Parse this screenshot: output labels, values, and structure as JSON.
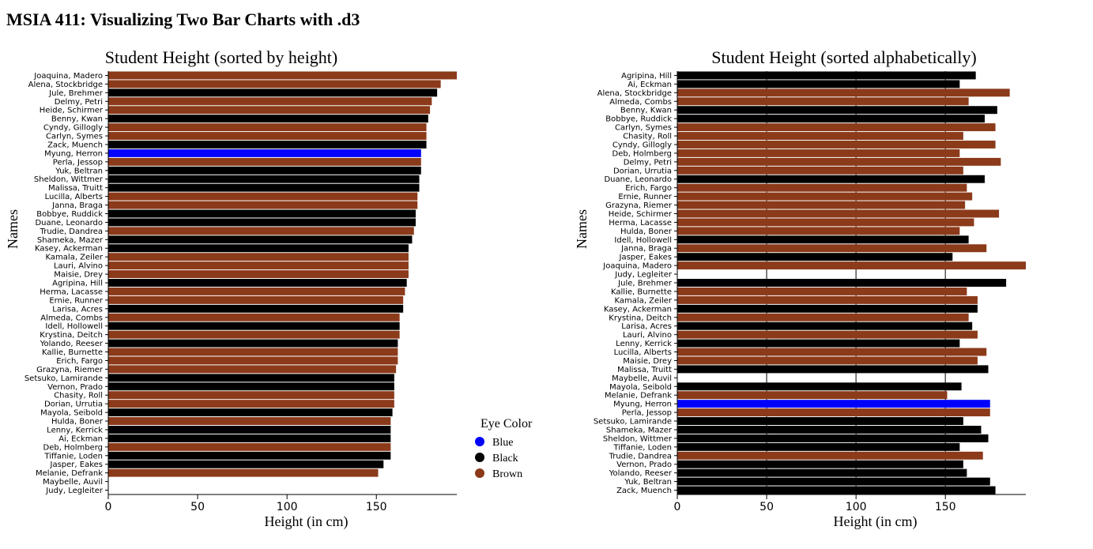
{
  "page": {
    "title": "MSIA 411: Visualizing Two Bar Charts with .d3"
  },
  "colors": {
    "Blue": "#0000ff",
    "Black": "#000000",
    "Brown": "#8b3a1a"
  },
  "legend": {
    "title": "Eye Color",
    "items": [
      {
        "label": "Blue",
        "color": "#0000ff"
      },
      {
        "label": "Black",
        "color": "#000000"
      },
      {
        "label": "Brown",
        "color": "#8b3a1a"
      }
    ]
  },
  "chart_data": [
    {
      "type": "bar",
      "orientation": "horizontal",
      "title": "Student Height (sorted by height)",
      "xlabel": "Height (in cm)",
      "ylabel": "Names",
      "xlim": [
        0,
        195
      ],
      "xticks": [
        0,
        50,
        100,
        150
      ],
      "grid": false,
      "bars": [
        {
          "name": "Joaquina, Madero",
          "value": 195,
          "eye": "Brown"
        },
        {
          "name": "Alena, Stockbridge",
          "value": 186,
          "eye": "Brown"
        },
        {
          "name": "Jule, Brehmer",
          "value": 184,
          "eye": "Black"
        },
        {
          "name": "Delmy, Petri",
          "value": 181,
          "eye": "Brown"
        },
        {
          "name": "Heide, Schirmer",
          "value": 180,
          "eye": "Brown"
        },
        {
          "name": "Benny, Kwan",
          "value": 179,
          "eye": "Black"
        },
        {
          "name": "Cyndy, Gillogly",
          "value": 178,
          "eye": "Brown"
        },
        {
          "name": "Carlyn, Symes",
          "value": 178,
          "eye": "Brown"
        },
        {
          "name": "Zack, Muench",
          "value": 178,
          "eye": "Black"
        },
        {
          "name": "Myung, Herron",
          "value": 175,
          "eye": "Blue"
        },
        {
          "name": "Perla, Jessop",
          "value": 175,
          "eye": "Brown"
        },
        {
          "name": "Yuk, Beltran",
          "value": 175,
          "eye": "Black"
        },
        {
          "name": "Sheldon, Wittmer",
          "value": 174,
          "eye": "Black"
        },
        {
          "name": "Malissa, Truitt",
          "value": 174,
          "eye": "Black"
        },
        {
          "name": "Lucilla, Alberts",
          "value": 173,
          "eye": "Brown"
        },
        {
          "name": "Janna, Braga",
          "value": 173,
          "eye": "Brown"
        },
        {
          "name": "Bobbye, Ruddick",
          "value": 172,
          "eye": "Black"
        },
        {
          "name": "Duane, Leonardo",
          "value": 172,
          "eye": "Black"
        },
        {
          "name": "Trudie, Dandrea",
          "value": 171,
          "eye": "Brown"
        },
        {
          "name": "Shameka, Mazer",
          "value": 170,
          "eye": "Black"
        },
        {
          "name": "Kasey, Ackerman",
          "value": 168,
          "eye": "Black"
        },
        {
          "name": "Kamala, Zeiler",
          "value": 168,
          "eye": "Brown"
        },
        {
          "name": "Lauri, Alvino",
          "value": 168,
          "eye": "Brown"
        },
        {
          "name": "Maisie, Drey",
          "value": 168,
          "eye": "Brown"
        },
        {
          "name": "Agripina, Hill",
          "value": 167,
          "eye": "Black"
        },
        {
          "name": "Herma, Lacasse",
          "value": 166,
          "eye": "Brown"
        },
        {
          "name": "Ernie, Runner",
          "value": 165,
          "eye": "Brown"
        },
        {
          "name": "Larisa, Acres",
          "value": 165,
          "eye": "Black"
        },
        {
          "name": "Almeda, Combs",
          "value": 163,
          "eye": "Brown"
        },
        {
          "name": "Idell, Hollowell",
          "value": 163,
          "eye": "Black"
        },
        {
          "name": "Krystina, Deitch",
          "value": 163,
          "eye": "Brown"
        },
        {
          "name": "Yolando, Reeser",
          "value": 162,
          "eye": "Black"
        },
        {
          "name": "Kallie, Burnette",
          "value": 162,
          "eye": "Brown"
        },
        {
          "name": "Erich, Fargo",
          "value": 162,
          "eye": "Brown"
        },
        {
          "name": "Grazyna, Riemer",
          "value": 161,
          "eye": "Brown"
        },
        {
          "name": "Setsuko, Lamirande",
          "value": 160,
          "eye": "Black"
        },
        {
          "name": "Vernon, Prado",
          "value": 160,
          "eye": "Black"
        },
        {
          "name": "Chasity, Roll",
          "value": 160,
          "eye": "Brown"
        },
        {
          "name": "Dorian, Urrutia",
          "value": 160,
          "eye": "Brown"
        },
        {
          "name": "Mayola, Seibold",
          "value": 159,
          "eye": "Black"
        },
        {
          "name": "Hulda, Boner",
          "value": 158,
          "eye": "Brown"
        },
        {
          "name": "Lenny, Kerrick",
          "value": 158,
          "eye": "Black"
        },
        {
          "name": "Ai, Eckman",
          "value": 158,
          "eye": "Black"
        },
        {
          "name": "Deb, Holmberg",
          "value": 158,
          "eye": "Brown"
        },
        {
          "name": "Tiffanie, Loden",
          "value": 158,
          "eye": "Black"
        },
        {
          "name": "Jasper, Eakes",
          "value": 154,
          "eye": "Black"
        },
        {
          "name": "Melanie, Defrank",
          "value": 151,
          "eye": "Brown"
        },
        {
          "name": "Maybelle, Auvil",
          "value": 0,
          "eye": "Brown"
        },
        {
          "name": "Judy, Legleiter",
          "value": 0,
          "eye": "Brown"
        }
      ]
    },
    {
      "type": "bar",
      "orientation": "horizontal",
      "title": "Student Height (sorted alphabetically)",
      "xlabel": "Height (in cm)",
      "ylabel": "Names",
      "xlim": [
        0,
        195
      ],
      "xticks": [
        0,
        50,
        100,
        150
      ],
      "grid": true,
      "bars": [
        {
          "name": "Agripina, Hill",
          "value": 167,
          "eye": "Black"
        },
        {
          "name": "Ai, Eckman",
          "value": 158,
          "eye": "Black"
        },
        {
          "name": "Alena, Stockbridge",
          "value": 186,
          "eye": "Brown"
        },
        {
          "name": "Almeda, Combs",
          "value": 163,
          "eye": "Brown"
        },
        {
          "name": "Benny, Kwan",
          "value": 179,
          "eye": "Black"
        },
        {
          "name": "Bobbye, Ruddick",
          "value": 172,
          "eye": "Black"
        },
        {
          "name": "Carlyn, Symes",
          "value": 178,
          "eye": "Brown"
        },
        {
          "name": "Chasity, Roll",
          "value": 160,
          "eye": "Brown"
        },
        {
          "name": "Cyndy, Gillogly",
          "value": 178,
          "eye": "Brown"
        },
        {
          "name": "Deb, Holmberg",
          "value": 158,
          "eye": "Brown"
        },
        {
          "name": "Delmy, Petri",
          "value": 181,
          "eye": "Brown"
        },
        {
          "name": "Dorian, Urrutia",
          "value": 160,
          "eye": "Brown"
        },
        {
          "name": "Duane, Leonardo",
          "value": 172,
          "eye": "Black"
        },
        {
          "name": "Erich, Fargo",
          "value": 162,
          "eye": "Brown"
        },
        {
          "name": "Ernie, Runner",
          "value": 165,
          "eye": "Brown"
        },
        {
          "name": "Grazyna, Riemer",
          "value": 161,
          "eye": "Brown"
        },
        {
          "name": "Heide, Schirmer",
          "value": 180,
          "eye": "Brown"
        },
        {
          "name": "Herma, Lacasse",
          "value": 166,
          "eye": "Brown"
        },
        {
          "name": "Hulda, Boner",
          "value": 158,
          "eye": "Brown"
        },
        {
          "name": "Idell, Hollowell",
          "value": 163,
          "eye": "Black"
        },
        {
          "name": "Janna, Braga",
          "value": 173,
          "eye": "Brown"
        },
        {
          "name": "Jasper, Eakes",
          "value": 154,
          "eye": "Black"
        },
        {
          "name": "Joaquina, Madero",
          "value": 195,
          "eye": "Brown"
        },
        {
          "name": "Judy, Legleiter",
          "value": 0,
          "eye": "Brown"
        },
        {
          "name": "Jule, Brehmer",
          "value": 184,
          "eye": "Black"
        },
        {
          "name": "Kallie, Burnette",
          "value": 162,
          "eye": "Brown"
        },
        {
          "name": "Kamala, Zeiler",
          "value": 168,
          "eye": "Brown"
        },
        {
          "name": "Kasey, Ackerman",
          "value": 168,
          "eye": "Black"
        },
        {
          "name": "Krystina, Deitch",
          "value": 163,
          "eye": "Brown"
        },
        {
          "name": "Larisa, Acres",
          "value": 165,
          "eye": "Black"
        },
        {
          "name": "Lauri, Alvino",
          "value": 168,
          "eye": "Brown"
        },
        {
          "name": "Lenny, Kerrick",
          "value": 158,
          "eye": "Black"
        },
        {
          "name": "Lucilla, Alberts",
          "value": 173,
          "eye": "Brown"
        },
        {
          "name": "Maisie, Drey",
          "value": 168,
          "eye": "Brown"
        },
        {
          "name": "Malissa, Truitt",
          "value": 174,
          "eye": "Black"
        },
        {
          "name": "Maybelle, Auvil",
          "value": 0,
          "eye": "Brown"
        },
        {
          "name": "Mayola, Seibold",
          "value": 159,
          "eye": "Black"
        },
        {
          "name": "Melanie, Defrank",
          "value": 151,
          "eye": "Brown"
        },
        {
          "name": "Myung, Herron",
          "value": 175,
          "eye": "Blue"
        },
        {
          "name": "Perla, Jessop",
          "value": 175,
          "eye": "Brown"
        },
        {
          "name": "Setsuko, Lamirande",
          "value": 160,
          "eye": "Black"
        },
        {
          "name": "Shameka, Mazer",
          "value": 170,
          "eye": "Black"
        },
        {
          "name": "Sheldon, Wittmer",
          "value": 174,
          "eye": "Black"
        },
        {
          "name": "Tiffanie, Loden",
          "value": 158,
          "eye": "Black"
        },
        {
          "name": "Trudie, Dandrea",
          "value": 171,
          "eye": "Brown"
        },
        {
          "name": "Vernon, Prado",
          "value": 160,
          "eye": "Black"
        },
        {
          "name": "Yolando, Reeser",
          "value": 162,
          "eye": "Black"
        },
        {
          "name": "Yuk, Beltran",
          "value": 175,
          "eye": "Black"
        },
        {
          "name": "Zack, Muench",
          "value": 178,
          "eye": "Black"
        }
      ]
    }
  ]
}
